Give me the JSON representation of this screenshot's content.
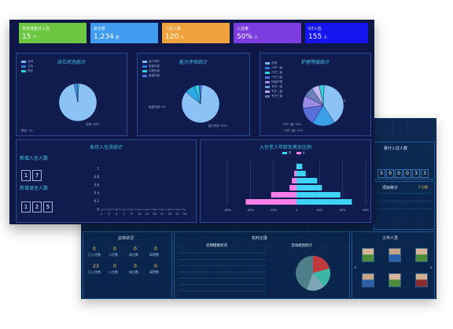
{
  "kpis": [
    {
      "label": "本年度累计入住",
      "value": "15",
      "unit": "个",
      "color": "#6cc63f"
    },
    {
      "label": "床位数",
      "value": "1,234",
      "unit": "张",
      "color": "#3f9cf0"
    },
    {
      "label": "入住人数",
      "value": "120",
      "unit": "人",
      "color": "#f0a23c"
    },
    {
      "label": "入住率",
      "value": "50%",
      "unit": "人",
      "color": "#7c3ce0"
    },
    {
      "label": "GT入住",
      "value": "155",
      "unit": "人",
      "color": "#1515ef"
    }
  ],
  "panels": {
    "bed": {
      "title": "床位状态统计",
      "legend": [
        {
          "label": "空闲",
          "color": "#79b8f4"
        },
        {
          "label": "占用",
          "color": "#2c7bd6"
        },
        {
          "label": "预定",
          "color": "#2fd1d8"
        }
      ],
      "slices": [
        {
          "value": 96,
          "color": "#8cc3f7"
        },
        {
          "value": 3,
          "color": "#3f8fe2"
        },
        {
          "value": 1,
          "color": "#2fd1d8"
        }
      ],
      "labels": [
        "空闲: 96%",
        "预定: 1%"
      ]
    },
    "ability": {
      "title": "能力评估统计",
      "legend": [
        {
          "label": "能力完好",
          "color": "#79b8f4"
        },
        {
          "label": "轻度失能",
          "color": "#2c7bd6"
        },
        {
          "label": "中度失能",
          "color": "#2fd1d8"
        },
        {
          "label": "重度失能",
          "color": "#4a6fe0"
        }
      ],
      "slices": [
        {
          "value": 85,
          "color": "#8cc3f7"
        },
        {
          "value": 9,
          "color": "#2fa8e6"
        },
        {
          "value": 4,
          "color": "#2fd1d8"
        },
        {
          "value": 2,
          "color": "#4a6fe0"
        }
      ],
      "labels": [
        "能力完好: 85%",
        "轻度失能: 9%"
      ]
    },
    "care": {
      "title": "护理等级统计",
      "legend": [
        {
          "label": "自理",
          "color": "#79b8f4"
        },
        {
          "label": "介护一级",
          "color": "#2c7bd6"
        },
        {
          "label": "介护二级",
          "color": "#2fd1d8"
        },
        {
          "label": "介护三级",
          "color": "#4a6fe0"
        },
        {
          "label": "特级护理",
          "color": "#9a8ce6"
        },
        {
          "label": "专护一级",
          "color": "#6b9ed6"
        },
        {
          "label": "专护二级",
          "color": "#b6a9e8"
        },
        {
          "label": "专护三级",
          "color": "#5f6fa8"
        }
      ],
      "slices": [
        {
          "value": 40,
          "color": "#8cc3f7"
        },
        {
          "value": 18,
          "color": "#3aa0e8"
        },
        {
          "value": 14,
          "color": "#5a6fd8"
        },
        {
          "value": 10,
          "color": "#9a8ce6"
        },
        {
          "value": 8,
          "color": "#6b7fb8"
        },
        {
          "value": 6,
          "color": "#c3b6ef"
        },
        {
          "value": 4,
          "color": "#2fd1d8"
        }
      ],
      "labels": [
        "自理: 40%",
        "介护一级: 18%",
        "介护二级: 14%"
      ]
    },
    "monthly": {
      "title": "本月入住流统计",
      "new_label": "新增入住人数",
      "new_digits": [
        "1",
        "7"
      ],
      "out_label": "新增退住人数",
      "out_digits": [
        "1",
        "2",
        "5"
      ],
      "y_ticks": [
        "1",
        "0.8",
        "0.6",
        "0.4",
        "0.2",
        "0"
      ],
      "x_ticks": [
        "1",
        "3",
        "5",
        "7",
        "9",
        "11",
        "13",
        "15",
        "17",
        "19",
        "21",
        "23"
      ]
    },
    "age": {
      "title": "入住老人年龄及男女比例",
      "legend": [
        {
          "label": "男",
          "color": "#3fd3f7"
        },
        {
          "label": "女",
          "color": "#ff7fe8"
        }
      ],
      "rows": [
        {
          "male": 5,
          "female": 0
        },
        {
          "male": 8,
          "female": 2
        },
        {
          "male": 18,
          "female": 4
        },
        {
          "male": 22,
          "female": 6
        },
        {
          "male": 38,
          "female": 22
        },
        {
          "male": 48,
          "female": 44
        }
      ],
      "x_ticks": [
        "-60%",
        "-40%",
        "-20%",
        "0",
        "20%",
        "40%",
        "60%"
      ]
    }
  },
  "back": {
    "counter_title": "累计入住人数",
    "counter_digits": [
      "0",
      "0",
      "0",
      "0",
      "3",
      "3"
    ],
    "project_title": "项目统计",
    "project_badge": "1 日报",
    "left_title": "总体状况",
    "left_stats": [
      {
        "value": "0",
        "label": "已入住数"
      },
      {
        "value": "0",
        "label": "入住数"
      },
      {
        "value": "0",
        "label": "床位数"
      },
      {
        "value": "0",
        "label": "离院数"
      },
      {
        "value": "23",
        "label": "已入住数"
      },
      {
        "value": "0",
        "label": "入住数"
      },
      {
        "value": "0",
        "label": "床位数"
      },
      {
        "value": "0",
        "label": "离院数"
      }
    ],
    "mid_title": "实时记录",
    "list_title": "近期健康状况",
    "pie_title": "活动规划统计",
    "staff_title": "工作人员"
  }
}
